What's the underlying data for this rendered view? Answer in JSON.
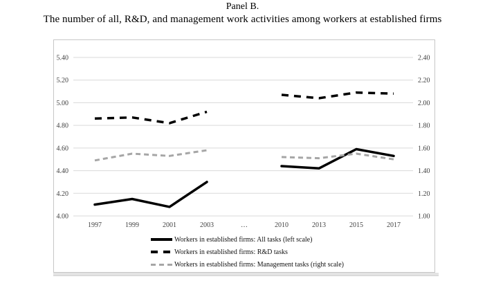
{
  "page": {
    "title": "Panel B.",
    "subtitle": "The number of all, R&D, and management work activities among workers at established firms"
  },
  "colors": {
    "gridline": "#d9d9d9",
    "box_border": "#c6c6c6",
    "axis_text": "#3f3f3f",
    "legend_text": "#111111",
    "series_all": "#000000",
    "series_rd": "#000000",
    "series_management": "#a6a6a6",
    "bottom_strip": "#e3e3e3"
  },
  "chart_data": {
    "type": "line",
    "title": "Panel B.",
    "subtitle": "The number of all, R&D, and management work activities among workers at established firms",
    "categories": [
      "1997",
      "1999",
      "2001",
      "2003",
      "…",
      "2010",
      "2013",
      "2015",
      "2017"
    ],
    "left_axis": {
      "min": 4.0,
      "max": 5.4,
      "ticks": [
        "5.40",
        "5.20",
        "5.00",
        "4.80",
        "4.60",
        "4.40",
        "4.20",
        "4.00"
      ]
    },
    "right_axis": {
      "min": 1.0,
      "max": 2.4,
      "ticks": [
        "2.40",
        "2.20",
        "2.00",
        "1.80",
        "1.60",
        "1.40",
        "1.20",
        "1.00"
      ]
    },
    "grid": true,
    "legend_position": "bottom-center",
    "series": [
      {
        "name": "Workers in established firms: All tasks (left scale)",
        "axis": "left",
        "style": "solid",
        "color": "#000000",
        "width": 3.5,
        "dash": "",
        "segments": [
          {
            "x": [
              "1997",
              "1999",
              "2001",
              "2003"
            ],
            "values": [
              4.1,
              4.15,
              4.08,
              4.3
            ]
          },
          {
            "x": [
              "2010",
              "2013",
              "2015",
              "2017"
            ],
            "values": [
              4.44,
              4.42,
              4.59,
              4.53
            ]
          }
        ]
      },
      {
        "name": "Workers in established firms: R&D tasks",
        "axis": "left",
        "style": "dashed",
        "color": "#000000",
        "width": 3.5,
        "dash": "10,8",
        "segments": [
          {
            "x": [
              "1997",
              "1999",
              "2001",
              "2003"
            ],
            "values": [
              4.86,
              4.87,
              4.82,
              4.92
            ]
          },
          {
            "x": [
              "2010",
              "2013",
              "2015",
              "2017"
            ],
            "values": [
              5.07,
              5.04,
              5.09,
              5.08
            ]
          }
        ]
      },
      {
        "name": "Workers in established firms: Management tasks (right scale)",
        "axis": "right",
        "style": "dashed",
        "color": "#a6a6a6",
        "width": 3,
        "dash": "7,5",
        "segments": [
          {
            "x": [
              "1997",
              "1999",
              "2001",
              "2003"
            ],
            "values": [
              1.49,
              1.55,
              1.53,
              1.58
            ]
          },
          {
            "x": [
              "2010",
              "2013",
              "2015",
              "2017"
            ],
            "values": [
              1.52,
              1.51,
              1.55,
              1.5
            ]
          }
        ]
      }
    ]
  }
}
